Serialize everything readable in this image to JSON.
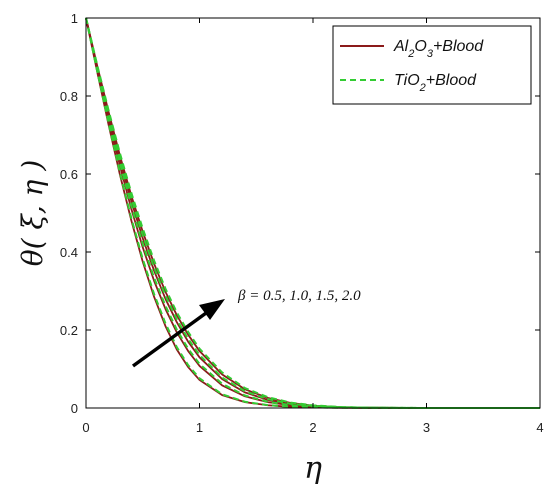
{
  "chart_data": {
    "type": "line",
    "xlabel": "η",
    "ylabel": "θ( ξ, η )",
    "xlim": [
      0,
      4
    ],
    "ylim": [
      0,
      1
    ],
    "xticks": [
      "0",
      "1",
      "2",
      "3",
      "4"
    ],
    "yticks": [
      "0",
      "0.2",
      "0.4",
      "0.6",
      "0.8",
      "1"
    ],
    "grid": false,
    "legend_position": "top-right",
    "legend": [
      {
        "base": "Al",
        "s1": "2",
        "mid": "O",
        "s2": "3",
        "rest": "+Blood",
        "style": "solid",
        "color": "#8b1a1a"
      },
      {
        "base": "TiO",
        "s1": "2",
        "mid": "",
        "s2": "",
        "rest": "+Blood",
        "style": "dashed",
        "color": "#33cc33"
      }
    ],
    "annotation": "β = 0.5, 1.0, 1.5, 2.0",
    "x": [
      0,
      0.1,
      0.2,
      0.3,
      0.4,
      0.5,
      0.6,
      0.7,
      0.8,
      0.9,
      1.0,
      1.2,
      1.4,
      1.6,
      1.8,
      2.0,
      2.25,
      2.5,
      3.0,
      3.5,
      4.0
    ],
    "series": [
      {
        "name": "Al2O3+Blood, β = 0.5",
        "style": "solid",
        "color": "#8b1a1a",
        "values": [
          1,
          0.86,
          0.725,
          0.597,
          0.48,
          0.375,
          0.285,
          0.21,
          0.15,
          0.105,
          0.072,
          0.033,
          0.015,
          0.007,
          0.003,
          0.0015,
          0.0005,
          0.0002,
          0,
          0,
          0
        ]
      },
      {
        "name": "Al2O3+Blood, β = 1.0",
        "style": "solid",
        "color": "#8b1a1a",
        "values": [
          1,
          0.867,
          0.74,
          0.62,
          0.51,
          0.412,
          0.326,
          0.254,
          0.194,
          0.146,
          0.108,
          0.058,
          0.03,
          0.015,
          0.007,
          0.003,
          0.0012,
          0.0004,
          0,
          0,
          0
        ]
      },
      {
        "name": "Al2O3+Blood, β = 1.5",
        "style": "solid",
        "color": "#8b1a1a",
        "values": [
          1,
          0.872,
          0.75,
          0.635,
          0.53,
          0.435,
          0.352,
          0.28,
          0.22,
          0.17,
          0.13,
          0.074,
          0.04,
          0.021,
          0.01,
          0.005,
          0.0018,
          0.0006,
          0,
          0,
          0
        ]
      },
      {
        "name": "Al2O3+Blood, β = 2.0",
        "style": "solid",
        "color": "#8b1a1a",
        "values": [
          1,
          0.876,
          0.758,
          0.646,
          0.544,
          0.452,
          0.37,
          0.298,
          0.238,
          0.188,
          0.146,
          0.086,
          0.048,
          0.026,
          0.013,
          0.006,
          0.0022,
          0.0008,
          0,
          0,
          0
        ]
      },
      {
        "name": "TiO2+Blood, β = 0.5",
        "style": "dashed",
        "color": "#33cc33",
        "values": [
          1,
          0.862,
          0.729,
          0.602,
          0.486,
          0.382,
          0.292,
          0.217,
          0.156,
          0.11,
          0.076,
          0.035,
          0.016,
          0.0075,
          0.0033,
          0.0016,
          0.0006,
          0.0002,
          0,
          0,
          0
        ]
      },
      {
        "name": "TiO2+Blood, β = 1.0",
        "style": "dashed",
        "color": "#33cc33",
        "values": [
          1,
          0.869,
          0.744,
          0.626,
          0.517,
          0.42,
          0.334,
          0.262,
          0.201,
          0.152,
          0.113,
          0.062,
          0.032,
          0.016,
          0.0075,
          0.0033,
          0.0013,
          0.0004,
          0,
          0,
          0
        ]
      },
      {
        "name": "TiO2+Blood, β = 1.5",
        "style": "dashed",
        "color": "#33cc33",
        "values": [
          1,
          0.874,
          0.754,
          0.641,
          0.537,
          0.443,
          0.36,
          0.288,
          0.227,
          0.177,
          0.136,
          0.078,
          0.043,
          0.023,
          0.011,
          0.0055,
          0.002,
          0.0007,
          0,
          0,
          0
        ]
      },
      {
        "name": "TiO2+Blood, β = 2.0",
        "style": "dashed",
        "color": "#33cc33",
        "values": [
          1,
          0.878,
          0.762,
          0.652,
          0.551,
          0.46,
          0.378,
          0.306,
          0.245,
          0.195,
          0.152,
          0.091,
          0.051,
          0.028,
          0.014,
          0.0068,
          0.0025,
          0.0009,
          0,
          0,
          0
        ]
      }
    ]
  }
}
